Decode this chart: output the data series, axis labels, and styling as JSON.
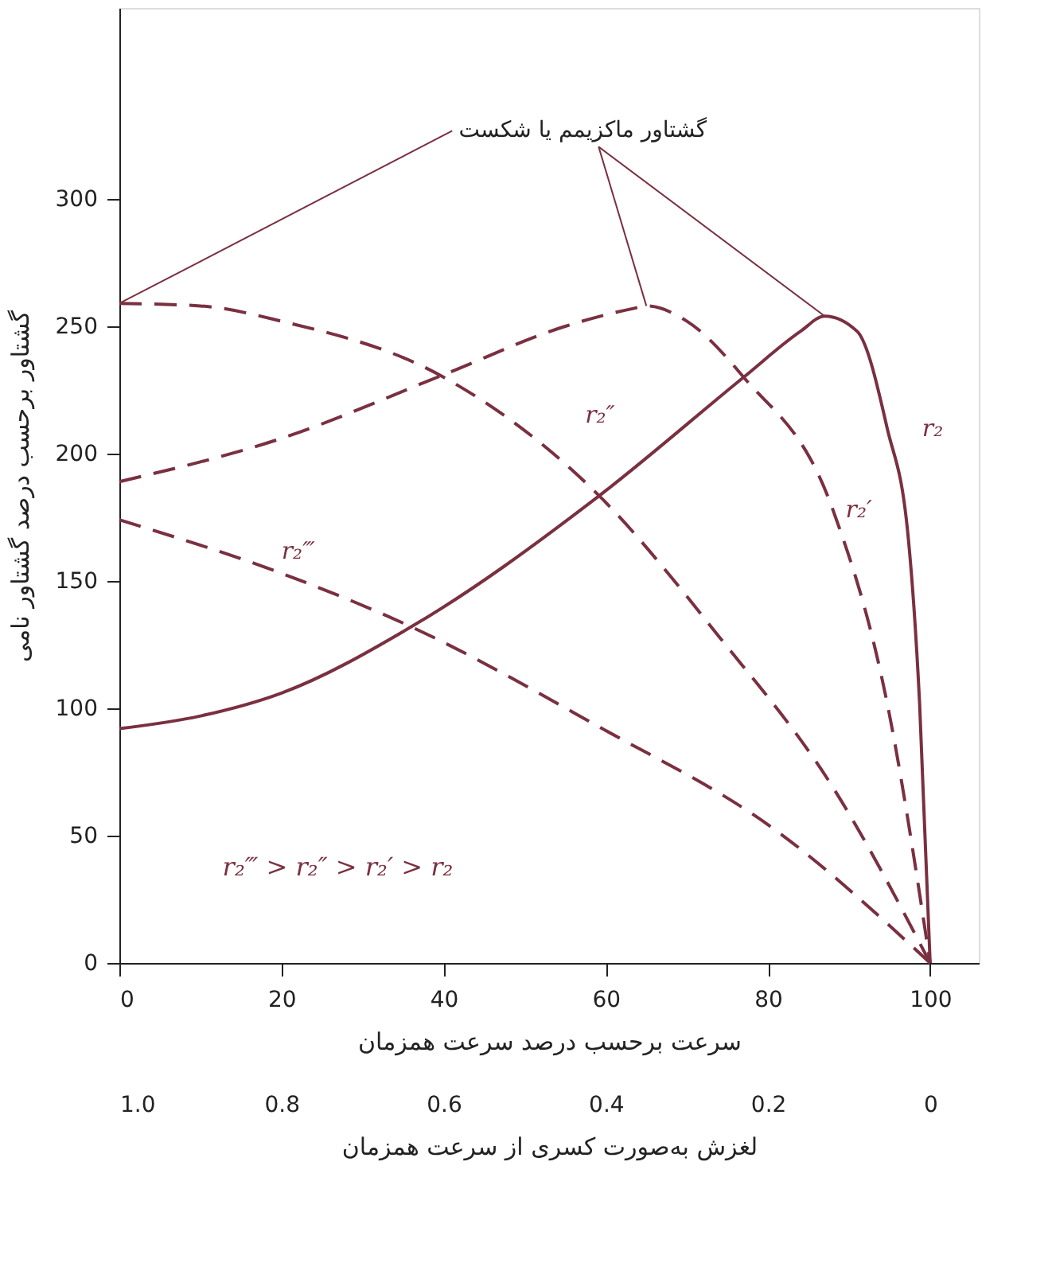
{
  "chart_data": {
    "type": "line",
    "xlabel": "سرعت برحسب درصد سرعت همزمان",
    "ylabel": "گشتاور برحسب درصد گشتاور نامی",
    "x2label": "لغزش به‌صورت کسری از سرعت همزمان",
    "annotations": [
      {
        "text": "گشتاور ماکزیمم یا شکست",
        "x": 65,
        "y": 258
      },
      "r₂‴ > r₂″ > r₂′ > r₂"
    ],
    "series": [
      {
        "name": "r₂",
        "color": "#7a3040",
        "line_style": "solid",
        "x": [
          0,
          10,
          20,
          36,
          59,
          77,
          84,
          87,
          91,
          94.7,
          97.3,
          98.7,
          100
        ],
        "values": [
          92,
          97,
          106,
          132,
          183,
          230,
          248,
          254,
          248,
          210,
          167,
          102,
          0
        ]
      },
      {
        "name": "r₂′",
        "color": "#7a3040",
        "line_style": "dashed",
        "x": [
          0,
          20,
          40,
          55,
          63.4,
          65,
          70,
          77,
          88,
          94.7,
          100
        ],
        "values": [
          189,
          206,
          231,
          250,
          257,
          258,
          252,
          230,
          178,
          102,
          0
        ]
      },
      {
        "name": "r₂″",
        "color": "#7a3040",
        "line_style": "dashed",
        "x": [
          0,
          10,
          20,
          40,
          59,
          74,
          88,
          100
        ],
        "values": [
          259,
          258,
          252,
          230,
          184,
          128,
          69,
          0
        ]
      },
      {
        "name": "r₂‴",
        "color": "#7a3040",
        "line_style": "dashed",
        "x": [
          0,
          20,
          36,
          59,
          81,
          100
        ],
        "values": [
          174,
          153,
          132,
          93,
          52,
          0
        ]
      }
    ],
    "xlim": [
      0,
      106
    ],
    "ylim": [
      0,
      375
    ],
    "xticks": [
      0,
      20,
      40,
      60,
      80,
      100
    ],
    "yticks": [
      0,
      50,
      100,
      150,
      200,
      250,
      300
    ],
    "x2lim": [
      1.0,
      -0.06
    ],
    "x2ticks": [
      {
        "value": 1.0,
        "label": "1.0"
      },
      0.8,
      0.6,
      0.4,
      0.2,
      0
    ],
    "grid": false,
    "marker": "none"
  }
}
